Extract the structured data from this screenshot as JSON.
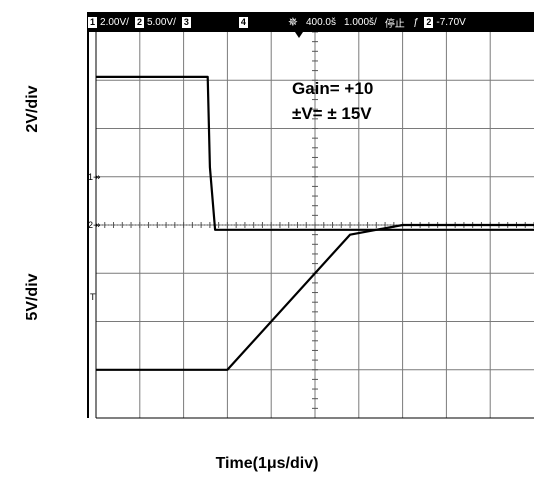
{
  "status_bar": {
    "ch1_num": "1",
    "ch1_scale": "2.00V/",
    "ch2_num": "2",
    "ch2_scale": "5.00V/",
    "ch3_num": "3",
    "ch4_num": "4",
    "trigger_icon": "trigger-star-icon",
    "timebase": "400.0š",
    "sample_rate": "1.000š/",
    "run_state": "停止",
    "trig_slope": "ƒ",
    "trig_ch": "2",
    "trig_level": "-7.70V"
  },
  "annotation": {
    "line1": "Gain= +10",
    "line2": "±V= ± 15V"
  },
  "chart_data": {
    "type": "line",
    "title": "",
    "xlabel": "Time(1μs/div)",
    "ylabels": [
      "2V/div",
      "5V/div"
    ],
    "grid": true,
    "x_divisions": 10,
    "y_divisions": 8,
    "xlim": [
      0,
      10
    ],
    "ylim": [
      -4,
      4
    ],
    "markers": [
      "1↠",
      "2↠",
      "T"
    ],
    "series": [
      {
        "x": [
          0,
          2.55,
          2.6,
          2.72,
          10
        ],
        "y": [
          3.07,
          3.07,
          1.2,
          -0.1,
          -0.1
        ],
        "color": "#000000"
      },
      {
        "x": [
          0,
          3.0,
          5.8,
          7.0,
          10
        ],
        "y": [
          -3.0,
          -3.0,
          -0.2,
          0.0,
          0.0
        ],
        "color": "#000000"
      }
    ]
  }
}
